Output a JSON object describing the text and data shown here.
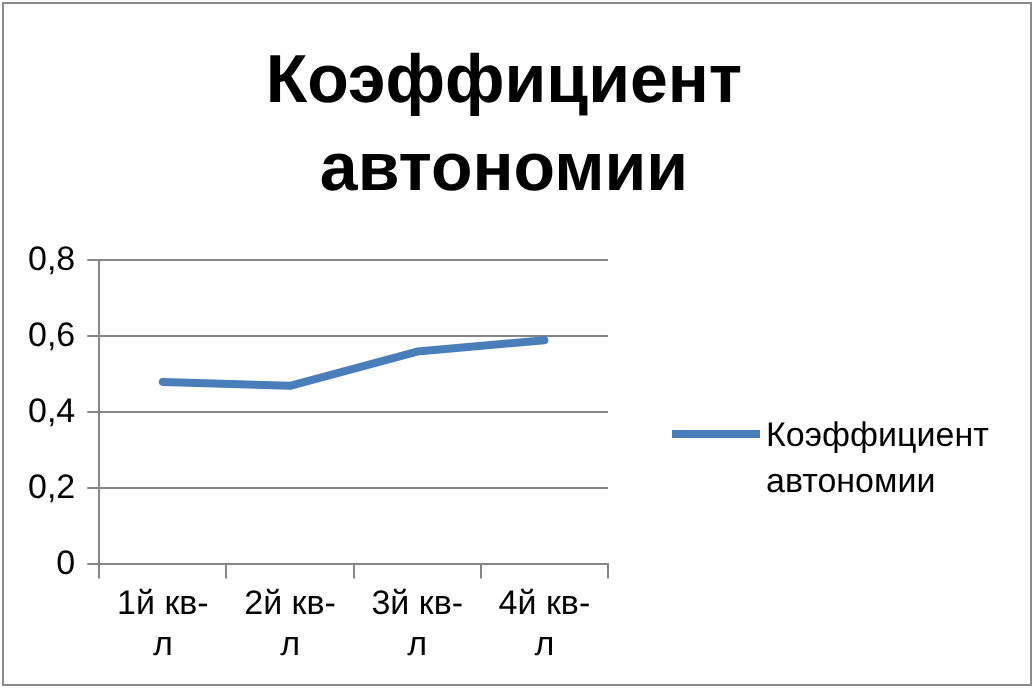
{
  "chart_data": {
    "type": "line",
    "title": "Коэффициент автономии",
    "categories": [
      "1й кв-л",
      "2й кв-л",
      "3й кв-л",
      "4й кв-л"
    ],
    "series": [
      {
        "name": "Коэффициент автономии",
        "color": "#4a7ebb",
        "values": [
          0.48,
          0.47,
          0.56,
          0.59
        ]
      }
    ],
    "ylim": [
      0,
      0.8
    ],
    "yticks": [
      {
        "value": 0,
        "label": "0"
      },
      {
        "value": 0.2,
        "label": "0,2"
      },
      {
        "value": 0.4,
        "label": "0,4"
      },
      {
        "value": 0.6,
        "label": "0,6"
      },
      {
        "value": 0.8,
        "label": "0,8"
      }
    ],
    "grid": "y",
    "legend": "right",
    "marker": "none",
    "line_style": "solid"
  }
}
